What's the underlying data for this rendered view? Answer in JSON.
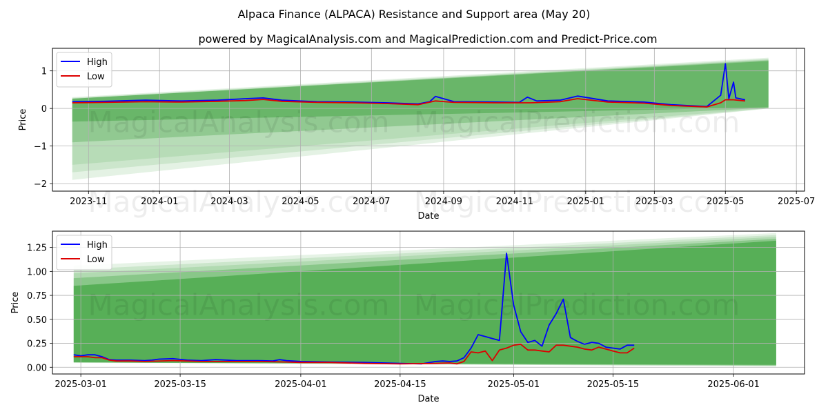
{
  "page": {
    "title": "Alpaca Finance (ALPACA) Resistance and Support area (May 20)",
    "subtitle": "powered by MagicalAnalysis.com and MagicalPrediction.com and Predict-Price.com"
  },
  "watermark": {
    "text_left": "MagicalAnalysis.com",
    "text_right": "MagicalPrediction.com"
  },
  "colors": {
    "high": "#0000ff",
    "low": "#dd0000",
    "band": "#2e9a2e",
    "grid": "#b0b0b0"
  },
  "chart_data": [
    {
      "type": "line",
      "xlabel": "Date",
      "ylabel": "Price",
      "xlim": [
        "2023-10-01",
        "2025-07-08"
      ],
      "ylim": [
        -2.2,
        1.6
      ],
      "x_ticks": [
        "2023-11",
        "2024-01",
        "2024-03",
        "2024-05",
        "2024-07",
        "2024-09",
        "2024-11",
        "2025-01",
        "2025-03",
        "2025-05",
        "2025-07"
      ],
      "y_ticks": [
        1,
        0,
        -1,
        -2
      ],
      "legend": {
        "position": "top-left",
        "entries": [
          "High",
          "Low"
        ]
      },
      "series": [
        {
          "name": "High",
          "x": [
            "2023-10-18",
            "2023-11-15",
            "2023-12-20",
            "2024-01-20",
            "2024-02-20",
            "2024-03-15",
            "2024-03-30",
            "2024-04-15",
            "2024-05-15",
            "2024-06-15",
            "2024-07-15",
            "2024-08-10",
            "2024-08-20",
            "2024-08-25",
            "2024-09-10",
            "2024-10-15",
            "2024-11-05",
            "2024-11-12",
            "2024-11-20",
            "2024-12-10",
            "2024-12-25",
            "2025-01-20",
            "2025-02-20",
            "2025-03-15",
            "2025-04-15",
            "2025-04-27",
            "2025-05-01",
            "2025-05-04",
            "2025-05-08",
            "2025-05-10",
            "2025-05-18"
          ],
          "values": [
            0.18,
            0.19,
            0.22,
            0.2,
            0.22,
            0.26,
            0.28,
            0.22,
            0.18,
            0.17,
            0.15,
            0.12,
            0.18,
            0.32,
            0.18,
            0.17,
            0.16,
            0.3,
            0.2,
            0.22,
            0.33,
            0.2,
            0.17,
            0.1,
            0.05,
            0.35,
            1.19,
            0.26,
            0.7,
            0.28,
            0.23
          ]
        },
        {
          "name": "Low",
          "x": [
            "2023-10-18",
            "2023-11-15",
            "2023-12-20",
            "2024-01-20",
            "2024-02-20",
            "2024-03-15",
            "2024-03-30",
            "2024-04-15",
            "2024-05-15",
            "2024-06-15",
            "2024-07-15",
            "2024-08-10",
            "2024-08-25",
            "2024-09-10",
            "2024-10-15",
            "2024-11-15",
            "2024-12-10",
            "2024-12-25",
            "2025-01-20",
            "2025-02-20",
            "2025-03-15",
            "2025-04-15",
            "2025-04-27",
            "2025-05-01",
            "2025-05-08",
            "2025-05-18"
          ],
          "values": [
            0.15,
            0.16,
            0.18,
            0.17,
            0.19,
            0.21,
            0.24,
            0.19,
            0.16,
            0.15,
            0.13,
            0.1,
            0.2,
            0.16,
            0.15,
            0.15,
            0.18,
            0.26,
            0.17,
            0.14,
            0.08,
            0.04,
            0.15,
            0.23,
            0.23,
            0.2
          ]
        }
      ]
    },
    {
      "type": "line",
      "xlabel": "Date",
      "ylabel": "Price",
      "xlim": [
        "2025-02-25",
        "2025-06-11"
      ],
      "ylim": [
        -0.07,
        1.42
      ],
      "x_ticks": [
        "2025-03-01",
        "2025-03-15",
        "2025-04-01",
        "2025-04-15",
        "2025-05-01",
        "2025-05-15",
        "2025-06-01"
      ],
      "y_ticks": [
        0.0,
        0.25,
        0.5,
        0.75,
        1.0,
        1.25
      ],
      "legend": {
        "position": "top-left",
        "entries": [
          "High",
          "Low"
        ]
      },
      "series": [
        {
          "name": "High",
          "x": [
            "2025-02-28",
            "2025-03-01",
            "2025-03-02",
            "2025-03-03",
            "2025-03-04",
            "2025-03-05",
            "2025-03-06",
            "2025-03-08",
            "2025-03-10",
            "2025-03-11",
            "2025-03-12",
            "2025-03-14",
            "2025-03-16",
            "2025-03-18",
            "2025-03-20",
            "2025-03-23",
            "2025-03-26",
            "2025-03-28",
            "2025-03-29",
            "2025-03-30",
            "2025-04-01",
            "2025-04-05",
            "2025-04-10",
            "2025-04-15",
            "2025-04-18",
            "2025-04-20",
            "2025-04-21",
            "2025-04-22",
            "2025-04-23",
            "2025-04-24",
            "2025-04-25",
            "2025-04-26",
            "2025-04-27",
            "2025-04-28",
            "2025-04-29",
            "2025-04-30",
            "2025-05-01",
            "2025-05-02",
            "2025-05-03",
            "2025-05-04",
            "2025-05-05",
            "2025-05-06",
            "2025-05-07",
            "2025-05-08",
            "2025-05-09",
            "2025-05-10",
            "2025-05-11",
            "2025-05-12",
            "2025-05-13",
            "2025-05-14",
            "2025-05-15",
            "2025-05-16",
            "2025-05-17",
            "2025-05-18"
          ],
          "values": [
            0.13,
            0.12,
            0.13,
            0.13,
            0.11,
            0.08,
            0.075,
            0.075,
            0.07,
            0.075,
            0.085,
            0.09,
            0.075,
            0.07,
            0.08,
            0.07,
            0.07,
            0.065,
            0.08,
            0.07,
            0.06,
            0.055,
            0.05,
            0.04,
            0.035,
            0.06,
            0.065,
            0.06,
            0.065,
            0.1,
            0.2,
            0.34,
            0.32,
            0.3,
            0.28,
            1.19,
            0.65,
            0.37,
            0.26,
            0.28,
            0.22,
            0.44,
            0.56,
            0.71,
            0.31,
            0.27,
            0.24,
            0.26,
            0.25,
            0.21,
            0.2,
            0.19,
            0.23,
            0.23
          ]
        },
        {
          "name": "Low",
          "x": [
            "2025-02-28",
            "2025-03-01",
            "2025-03-02",
            "2025-03-03",
            "2025-03-04",
            "2025-03-05",
            "2025-03-06",
            "2025-03-08",
            "2025-03-10",
            "2025-03-14",
            "2025-03-18",
            "2025-03-22",
            "2025-03-26",
            "2025-03-30",
            "2025-04-01",
            "2025-04-05",
            "2025-04-10",
            "2025-04-15",
            "2025-04-20",
            "2025-04-22",
            "2025-04-23",
            "2025-04-24",
            "2025-04-25",
            "2025-04-26",
            "2025-04-27",
            "2025-04-28",
            "2025-04-29",
            "2025-04-30",
            "2025-05-01",
            "2025-05-02",
            "2025-05-03",
            "2025-05-04",
            "2025-05-05",
            "2025-05-06",
            "2025-05-07",
            "2025-05-08",
            "2025-05-09",
            "2025-05-10",
            "2025-05-11",
            "2025-05-12",
            "2025-05-13",
            "2025-05-14",
            "2025-05-15",
            "2025-05-16",
            "2025-05-17",
            "2025-05-18"
          ],
          "values": [
            0.11,
            0.11,
            0.11,
            0.1,
            0.1,
            0.075,
            0.065,
            0.065,
            0.06,
            0.07,
            0.06,
            0.06,
            0.06,
            0.055,
            0.05,
            0.05,
            0.04,
            0.035,
            0.04,
            0.045,
            0.035,
            0.06,
            0.16,
            0.15,
            0.17,
            0.07,
            0.18,
            0.2,
            0.23,
            0.24,
            0.18,
            0.18,
            0.17,
            0.16,
            0.23,
            0.23,
            0.22,
            0.21,
            0.19,
            0.18,
            0.21,
            0.19,
            0.17,
            0.15,
            0.15,
            0.2
          ]
        }
      ]
    }
  ]
}
